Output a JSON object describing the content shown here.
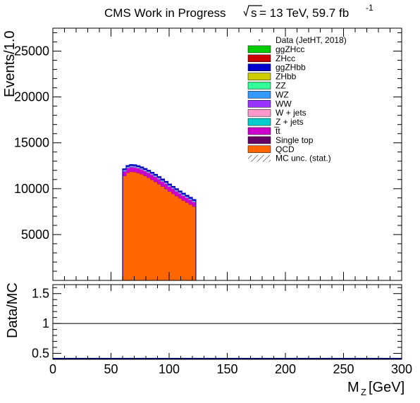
{
  "header": {
    "left": "CMS Work in Progress",
    "energy": "= 13 TeV, 59.7 fb",
    "energy_exp": "-1"
  },
  "chart_data": [
    {
      "type": "area",
      "stacked": true,
      "ylabel": "Events/1.0",
      "xlim": [
        0,
        300
      ],
      "ylim": [
        0,
        27500
      ],
      "yticks": [
        5000,
        10000,
        15000,
        20000,
        25000
      ],
      "x": [
        60,
        63,
        66,
        69,
        72,
        75,
        78,
        81,
        84,
        87,
        90,
        93,
        96,
        99,
        102,
        105,
        108,
        111,
        114,
        117,
        120
      ],
      "series": [
        {
          "name": "QCD",
          "color": "#ff6600",
          "values": [
            11400,
            11750,
            11850,
            11820,
            11720,
            11580,
            11400,
            11200,
            10980,
            10750,
            10500,
            10240,
            9980,
            9700,
            9450,
            9200,
            8960,
            8720,
            8500,
            8280,
            8050
          ]
        },
        {
          "name": "Single top",
          "color": "#660066",
          "values": [
            20,
            20,
            20,
            20,
            20,
            20,
            20,
            20,
            20,
            20,
            20,
            20,
            20,
            20,
            20,
            20,
            20,
            20,
            20,
            20,
            20
          ]
        },
        {
          "name": "t̅t",
          "color": "#cc00cc",
          "values": [
            480,
            490,
            495,
            500,
            505,
            510,
            515,
            520,
            525,
            530,
            530,
            530,
            530,
            525,
            520,
            515,
            510,
            505,
            500,
            495,
            490
          ]
        },
        {
          "name": "Z + jets",
          "color": "#00cccc",
          "values": [
            30,
            30,
            30,
            30,
            30,
            30,
            30,
            30,
            30,
            30,
            30,
            30,
            30,
            30,
            30,
            30,
            30,
            30,
            30,
            30,
            30
          ]
        },
        {
          "name": "W + jets",
          "color": "#ff99cc",
          "values": [
            40,
            40,
            40,
            40,
            40,
            40,
            40,
            40,
            40,
            40,
            40,
            40,
            40,
            40,
            40,
            40,
            40,
            40,
            40,
            40,
            40
          ]
        },
        {
          "name": "WW",
          "color": "#9933ff",
          "values": [
            20,
            20,
            20,
            20,
            20,
            20,
            20,
            20,
            20,
            20,
            20,
            20,
            20,
            20,
            20,
            20,
            20,
            20,
            20,
            20,
            20
          ]
        },
        {
          "name": "WZ",
          "color": "#3399ff",
          "values": [
            40,
            40,
            40,
            40,
            40,
            40,
            40,
            40,
            40,
            40,
            40,
            40,
            40,
            40,
            40,
            40,
            40,
            40,
            40,
            40,
            40
          ]
        },
        {
          "name": "ZZ",
          "color": "#33ff99",
          "values": [
            10,
            10,
            10,
            10,
            10,
            10,
            10,
            10,
            10,
            10,
            10,
            10,
            10,
            10,
            10,
            10,
            10,
            10,
            10,
            10,
            10
          ]
        },
        {
          "name": "ZHbb",
          "color": "#cccc00",
          "values": [
            10,
            10,
            10,
            10,
            10,
            10,
            10,
            10,
            10,
            10,
            10,
            10,
            10,
            10,
            10,
            10,
            10,
            10,
            10,
            10,
            10
          ]
        },
        {
          "name": "ggZHbb",
          "color": "#0000cc",
          "values": [
            100,
            100,
            100,
            100,
            100,
            100,
            100,
            100,
            100,
            100,
            100,
            100,
            100,
            100,
            100,
            100,
            100,
            100,
            100,
            100,
            100
          ]
        },
        {
          "name": "ZHcc",
          "color": "#cc0000",
          "values": [
            5,
            5,
            5,
            5,
            5,
            5,
            5,
            5,
            5,
            5,
            5,
            5,
            5,
            5,
            5,
            5,
            5,
            5,
            5,
            5,
            5
          ]
        },
        {
          "name": "ggZHcc",
          "color": "#00cc00",
          "values": [
            5,
            5,
            5,
            5,
            5,
            5,
            5,
            5,
            5,
            5,
            5,
            5,
            5,
            5,
            5,
            5,
            5,
            5,
            5,
            5,
            5
          ]
        }
      ],
      "legend": {
        "placement": "top-right",
        "entries": [
          {
            "label": "Data (JetHT, 2018)",
            "style": "marker",
            "color": "#000000"
          },
          {
            "label": "ggZHcc",
            "style": "box",
            "color": "#00cc00"
          },
          {
            "label": "ZHcc",
            "style": "box",
            "color": "#cc0000"
          },
          {
            "label": "ggZHbb",
            "style": "box",
            "color": "#0000cc"
          },
          {
            "label": "ZHbb",
            "style": "box",
            "color": "#cccc00"
          },
          {
            "label": "ZZ",
            "style": "box",
            "color": "#33ff99"
          },
          {
            "label": "WZ",
            "style": "box",
            "color": "#3399ff"
          },
          {
            "label": "WW",
            "style": "box",
            "color": "#9933ff"
          },
          {
            "label": "W + jets",
            "style": "box",
            "color": "#ff99cc"
          },
          {
            "label": "Z + jets",
            "style": "box",
            "color": "#00cccc"
          },
          {
            "label": "t̅t",
            "style": "box",
            "color": "#cc00cc"
          },
          {
            "label": "Single top",
            "style": "box",
            "color": "#660066"
          },
          {
            "label": "QCD",
            "style": "box",
            "color": "#ff6600"
          },
          {
            "label": "MC unc. (stat.)",
            "style": "hatch",
            "color": "#000000"
          }
        ]
      },
      "grid": false
    },
    {
      "type": "line",
      "ylabel": "Data/MC",
      "xlabel": "M",
      "xlabel_sub": "Z",
      "xlabel_unit": "[GeV]",
      "xlim": [
        0,
        300
      ],
      "ylim": [
        0.4,
        1.65
      ],
      "yticks": [
        0.5,
        1,
        1.5
      ],
      "xticks": [
        0,
        50,
        100,
        150,
        200,
        250,
        300
      ],
      "reference_line": 1,
      "data_points": {
        "x": [
          0,
          300
        ],
        "y": [
          0.4,
          0.4
        ],
        "color": "#000080"
      },
      "grid": false
    }
  ]
}
